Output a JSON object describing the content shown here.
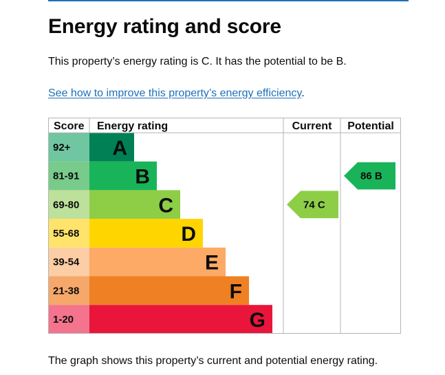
{
  "page": {
    "title": "Energy rating and score",
    "intro": "This property’s energy rating is C. It has the potential to be B.",
    "improve_link": "See how to improve this property’s energy efficiency",
    "improve_link_suffix": ".",
    "footer_text": "The graph shows this property’s current and potential energy rating."
  },
  "graph": {
    "headers": {
      "score": "Score",
      "energy_rating": "Energy rating",
      "current": "Current",
      "potential": "Potential"
    },
    "bands": [
      {
        "letter": "A",
        "range": "92+",
        "color": "#008054",
        "score_bg": "#6fc6a0"
      },
      {
        "letter": "B",
        "range": "81-91",
        "color": "#19b459",
        "score_bg": "#78cb8b"
      },
      {
        "letter": "C",
        "range": "69-80",
        "color": "#8dce46",
        "score_bg": "#bde19a"
      },
      {
        "letter": "D",
        "range": "55-68",
        "color": "#ffd500",
        "score_bg": "#ffe36a"
      },
      {
        "letter": "E",
        "range": "39-54",
        "color": "#fcaa65",
        "score_bg": "#fdcda5"
      },
      {
        "letter": "F",
        "range": "21-38",
        "color": "#ef8023",
        "score_bg": "#f5a86a"
      },
      {
        "letter": "G",
        "range": "1-20",
        "color": "#e9153b",
        "score_bg": "#f3748c"
      }
    ],
    "current": {
      "score": "74",
      "letter": "C",
      "label": "74 C",
      "color": "#8dce46"
    },
    "potential": {
      "score": "86",
      "letter": "B",
      "label": "86 B",
      "color": "#19b459"
    }
  }
}
